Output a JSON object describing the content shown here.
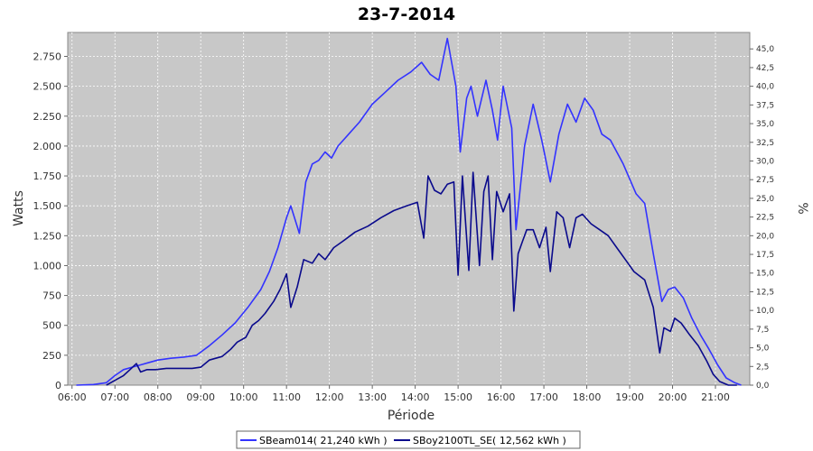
{
  "chart_data": {
    "type": "line",
    "title": "23-7-2014",
    "xlabel": "Période",
    "ylabel": "Watts",
    "y2label": "%",
    "xlim": [
      5.9,
      21.8
    ],
    "ylim": [
      0,
      2950
    ],
    "y2lim": [
      0,
      47.2
    ],
    "x_ticks": [
      6,
      7,
      8,
      9,
      10,
      11,
      12,
      13,
      14,
      15,
      16,
      17,
      18,
      19,
      20,
      21
    ],
    "x_tick_labels": [
      "06:00",
      "07:00",
      "08:00",
      "09:00",
      "10:00",
      "11:00",
      "12:00",
      "13:00",
      "14:00",
      "15:00",
      "16:00",
      "17:00",
      "18:00",
      "19:00",
      "20:00",
      "21:00"
    ],
    "y_ticks": [
      0,
      250,
      500,
      750,
      1000,
      1250,
      1500,
      1750,
      2000,
      2250,
      2500,
      2750
    ],
    "y_tick_labels": [
      "0",
      "250",
      "500",
      "750",
      "1.000",
      "1.250",
      "1.500",
      "1.750",
      "2.000",
      "2.250",
      "2.500",
      "2.750"
    ],
    "y2_ticks": [
      0,
      2.5,
      5,
      7.5,
      10,
      12.5,
      15,
      17.5,
      20,
      22.5,
      25,
      27.5,
      30,
      32.5,
      35,
      37.5,
      40,
      42.5,
      45
    ],
    "y2_tick_labels": [
      "0,0",
      "2,5",
      "5,0",
      "7,5",
      "10,0",
      "12,5",
      "15,0",
      "17,5",
      "20,0",
      "22,5",
      "25,0",
      "27,5",
      "30,0",
      "32,5",
      "35,0",
      "37,5",
      "40,0",
      "42,5",
      "45,0"
    ],
    "grid": true,
    "legend_position": "bottom",
    "series": [
      {
        "name": "SBeam014( 21,240 kWh )",
        "color": "#3333ff",
        "points": [
          [
            6.1,
            0
          ],
          [
            6.5,
            5
          ],
          [
            6.8,
            20
          ],
          [
            7.0,
            80
          ],
          [
            7.2,
            130
          ],
          [
            7.4,
            150
          ],
          [
            7.6,
            170
          ],
          [
            7.8,
            190
          ],
          [
            8.0,
            210
          ],
          [
            8.3,
            225
          ],
          [
            8.6,
            235
          ],
          [
            8.9,
            250
          ],
          [
            9.2,
            330
          ],
          [
            9.5,
            420
          ],
          [
            9.8,
            520
          ],
          [
            10.1,
            650
          ],
          [
            10.4,
            800
          ],
          [
            10.6,
            950
          ],
          [
            10.8,
            1150
          ],
          [
            11.0,
            1400
          ],
          [
            11.1,
            1500
          ],
          [
            11.3,
            1270
          ],
          [
            11.45,
            1700
          ],
          [
            11.6,
            1850
          ],
          [
            11.75,
            1880
          ],
          [
            11.9,
            1950
          ],
          [
            12.05,
            1900
          ],
          [
            12.2,
            2000
          ],
          [
            12.45,
            2100
          ],
          [
            12.7,
            2200
          ],
          [
            13.0,
            2350
          ],
          [
            13.3,
            2450
          ],
          [
            13.6,
            2550
          ],
          [
            13.9,
            2620
          ],
          [
            14.15,
            2700
          ],
          [
            14.35,
            2600
          ],
          [
            14.55,
            2550
          ],
          [
            14.75,
            2900
          ],
          [
            14.95,
            2500
          ],
          [
            15.05,
            1950
          ],
          [
            15.2,
            2400
          ],
          [
            15.3,
            2500
          ],
          [
            15.45,
            2250
          ],
          [
            15.65,
            2550
          ],
          [
            15.8,
            2300
          ],
          [
            15.92,
            2050
          ],
          [
            16.05,
            2500
          ],
          [
            16.25,
            2150
          ],
          [
            16.35,
            1300
          ],
          [
            16.55,
            2000
          ],
          [
            16.75,
            2350
          ],
          [
            16.95,
            2050
          ],
          [
            17.15,
            1700
          ],
          [
            17.35,
            2100
          ],
          [
            17.55,
            2350
          ],
          [
            17.75,
            2200
          ],
          [
            17.95,
            2400
          ],
          [
            18.15,
            2300
          ],
          [
            18.35,
            2100
          ],
          [
            18.55,
            2050
          ],
          [
            18.85,
            1850
          ],
          [
            19.15,
            1600
          ],
          [
            19.35,
            1520
          ],
          [
            19.55,
            1100
          ],
          [
            19.75,
            700
          ],
          [
            19.9,
            800
          ],
          [
            20.05,
            820
          ],
          [
            20.25,
            730
          ],
          [
            20.45,
            560
          ],
          [
            20.65,
            420
          ],
          [
            20.85,
            300
          ],
          [
            21.05,
            170
          ],
          [
            21.25,
            60
          ],
          [
            21.45,
            20
          ],
          [
            21.6,
            0
          ]
        ]
      },
      {
        "name": "SBoy2100TL_SE( 12,562 kWh )",
        "color": "#0a0a8c",
        "points": [
          [
            6.8,
            0
          ],
          [
            7.0,
            40
          ],
          [
            7.2,
            80
          ],
          [
            7.35,
            130
          ],
          [
            7.5,
            180
          ],
          [
            7.6,
            110
          ],
          [
            7.75,
            130
          ],
          [
            7.95,
            130
          ],
          [
            8.2,
            140
          ],
          [
            8.5,
            140
          ],
          [
            8.8,
            140
          ],
          [
            9.0,
            150
          ],
          [
            9.2,
            210
          ],
          [
            9.5,
            240
          ],
          [
            9.7,
            300
          ],
          [
            9.85,
            360
          ],
          [
            10.05,
            400
          ],
          [
            10.2,
            500
          ],
          [
            10.35,
            540
          ],
          [
            10.5,
            600
          ],
          [
            10.7,
            700
          ],
          [
            10.85,
            800
          ],
          [
            11.0,
            930
          ],
          [
            11.1,
            650
          ],
          [
            11.25,
            820
          ],
          [
            11.4,
            1050
          ],
          [
            11.6,
            1020
          ],
          [
            11.75,
            1100
          ],
          [
            11.9,
            1050
          ],
          [
            12.1,
            1150
          ],
          [
            12.3,
            1200
          ],
          [
            12.6,
            1280
          ],
          [
            12.9,
            1330
          ],
          [
            13.2,
            1400
          ],
          [
            13.5,
            1460
          ],
          [
            13.8,
            1500
          ],
          [
            14.05,
            1530
          ],
          [
            14.2,
            1230
          ],
          [
            14.3,
            1750
          ],
          [
            14.45,
            1630
          ],
          [
            14.6,
            1600
          ],
          [
            14.75,
            1680
          ],
          [
            14.9,
            1700
          ],
          [
            15.0,
            920
          ],
          [
            15.1,
            1750
          ],
          [
            15.25,
            960
          ],
          [
            15.35,
            1780
          ],
          [
            15.5,
            1000
          ],
          [
            15.6,
            1620
          ],
          [
            15.7,
            1750
          ],
          [
            15.8,
            1050
          ],
          [
            15.9,
            1620
          ],
          [
            16.05,
            1450
          ],
          [
            16.2,
            1600
          ],
          [
            16.3,
            620
          ],
          [
            16.4,
            1100
          ],
          [
            16.5,
            1200
          ],
          [
            16.6,
            1300
          ],
          [
            16.75,
            1300
          ],
          [
            16.9,
            1150
          ],
          [
            17.05,
            1320
          ],
          [
            17.15,
            950
          ],
          [
            17.3,
            1450
          ],
          [
            17.45,
            1400
          ],
          [
            17.6,
            1150
          ],
          [
            17.75,
            1400
          ],
          [
            17.9,
            1430
          ],
          [
            18.1,
            1350
          ],
          [
            18.3,
            1300
          ],
          [
            18.5,
            1250
          ],
          [
            18.7,
            1150
          ],
          [
            18.9,
            1050
          ],
          [
            19.1,
            950
          ],
          [
            19.35,
            880
          ],
          [
            19.55,
            650
          ],
          [
            19.7,
            270
          ],
          [
            19.8,
            480
          ],
          [
            19.95,
            450
          ],
          [
            20.05,
            560
          ],
          [
            20.2,
            520
          ],
          [
            20.4,
            420
          ],
          [
            20.6,
            330
          ],
          [
            20.8,
            200
          ],
          [
            20.95,
            90
          ],
          [
            21.1,
            30
          ],
          [
            21.3,
            0
          ],
          [
            21.5,
            0
          ]
        ]
      }
    ]
  }
}
